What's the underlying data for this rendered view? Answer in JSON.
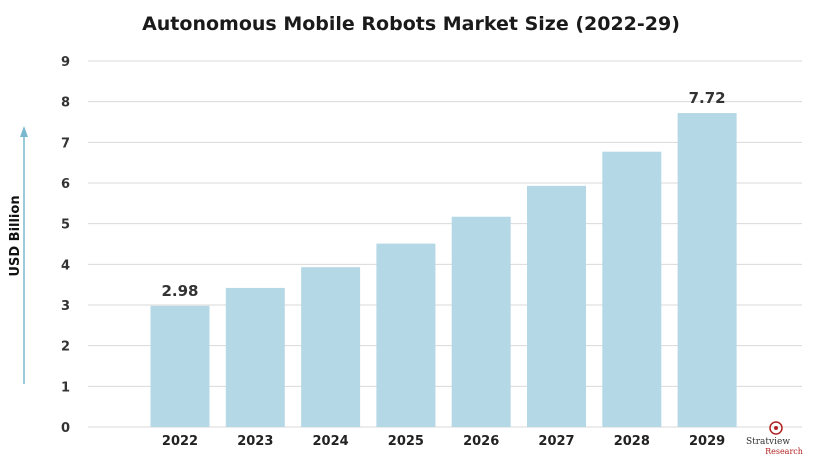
{
  "chart_data": {
    "type": "bar",
    "title": "Autonomous Mobile Robots Market Size (2022-29)",
    "xlabel": "",
    "ylabel": "USD Billion",
    "categories": [
      "2022",
      "2023",
      "2024",
      "2025",
      "2026",
      "2027",
      "2028",
      "2029"
    ],
    "values": [
      2.98,
      3.42,
      3.93,
      4.51,
      5.17,
      5.93,
      6.77,
      7.72
    ],
    "data_labels": [
      {
        "index": 0,
        "text": "2.98"
      },
      {
        "index": 7,
        "text": "7.72"
      }
    ],
    "ylim": [
      0,
      9
    ],
    "yticks": [
      "0",
      "1",
      "2",
      "3",
      "4",
      "5",
      "6",
      "7",
      "8",
      "9"
    ],
    "grid": true,
    "bar_color": "#b5d8e6",
    "axis_arrow_color": "#7ab8d0"
  },
  "logo": {
    "name": "Stratview",
    "sub": "Research"
  }
}
